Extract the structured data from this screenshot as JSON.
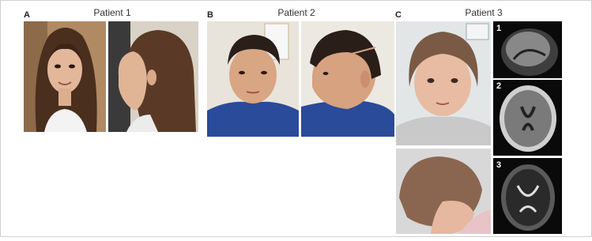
{
  "panels": [
    {
      "letter": "A",
      "title": "Patient 1"
    },
    {
      "letter": "B",
      "title": "Patient 2"
    },
    {
      "letter": "C",
      "title": "Patient 3"
    }
  ],
  "mri": {
    "labels": [
      "1",
      "2",
      "3"
    ]
  }
}
